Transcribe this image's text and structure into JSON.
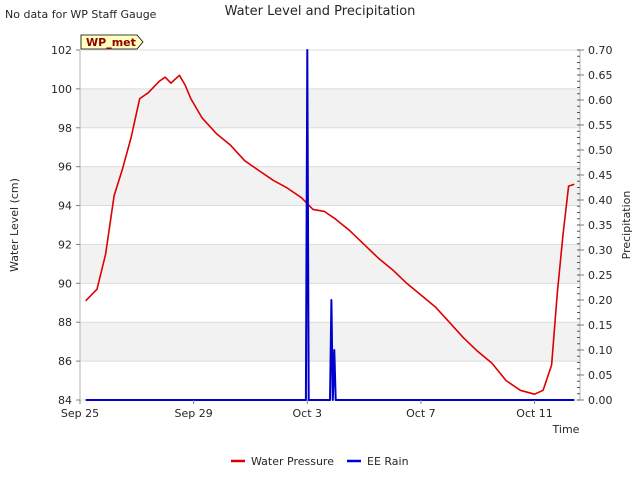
{
  "header": {
    "title": "Water Level and Precipitation",
    "no_data_note": "No data for WP Staff Gauge",
    "station_badge": "WP_met"
  },
  "chart_data": {
    "type": "line",
    "title": "Water Level and Precipitation",
    "xlabel": "Time",
    "ylabel": "Water Level (cm)",
    "y2label": "Precipitation",
    "x_ticks": [
      "Sep 25",
      "Sep 29",
      "Oct 3",
      "Oct 7",
      "Oct 11"
    ],
    "x_tick_days": [
      0,
      4,
      8,
      12,
      16
    ],
    "xlim_days": [
      0,
      17.6
    ],
    "ylim": [
      84,
      102
    ],
    "y_ticks": [
      84,
      86,
      88,
      90,
      92,
      94,
      96,
      98,
      100,
      102
    ],
    "y2lim": [
      0,
      0.7
    ],
    "y2_ticks": [
      "0.00",
      "0.05",
      "0.10",
      "0.15",
      "0.20",
      "0.25",
      "0.30",
      "0.35",
      "0.40",
      "0.45",
      "0.50",
      "0.55",
      "0.60",
      "0.65",
      "0.70"
    ],
    "grid": true,
    "legend_position": "bottom-center",
    "series": [
      {
        "name": "Water Pressure",
        "axis": "left",
        "color": "#dd0000",
        "x_days": [
          0.2,
          0.6,
          0.9,
          1.2,
          1.5,
          1.8,
          2.1,
          2.4,
          2.8,
          3.0,
          3.2,
          3.5,
          3.7,
          3.9,
          4.3,
          4.8,
          5.3,
          5.8,
          6.3,
          6.8,
          7.3,
          7.8,
          8.2,
          8.6,
          9.0,
          9.5,
          10.0,
          10.5,
          11.0,
          11.5,
          12.0,
          12.5,
          13.0,
          13.5,
          14.0,
          14.5,
          15.0,
          15.5,
          16.0,
          16.3,
          16.6,
          16.8,
          17.0,
          17.2,
          17.4
        ],
        "values": [
          89.1,
          89.7,
          91.5,
          94.5,
          95.9,
          97.5,
          99.5,
          99.8,
          100.4,
          100.6,
          100.3,
          100.7,
          100.2,
          99.5,
          98.5,
          97.7,
          97.1,
          96.3,
          95.8,
          95.3,
          94.9,
          94.4,
          93.8,
          93.7,
          93.3,
          92.7,
          92.0,
          91.3,
          90.7,
          90.0,
          89.4,
          88.8,
          88.0,
          87.2,
          86.5,
          85.9,
          85.0,
          84.5,
          84.3,
          84.5,
          85.8,
          89.5,
          92.5,
          95.0,
          95.1
        ]
      },
      {
        "name": "EE Rain",
        "axis": "right",
        "color": "#0000cc",
        "x_days": [
          0.2,
          7.95,
          8.0,
          8.05,
          8.8,
          8.85,
          8.9,
          8.95,
          9.0,
          9.05,
          17.4
        ],
        "values": [
          0,
          0,
          0.7,
          0,
          0,
          0.2,
          0,
          0.1,
          0,
          0,
          0
        ]
      }
    ]
  }
}
